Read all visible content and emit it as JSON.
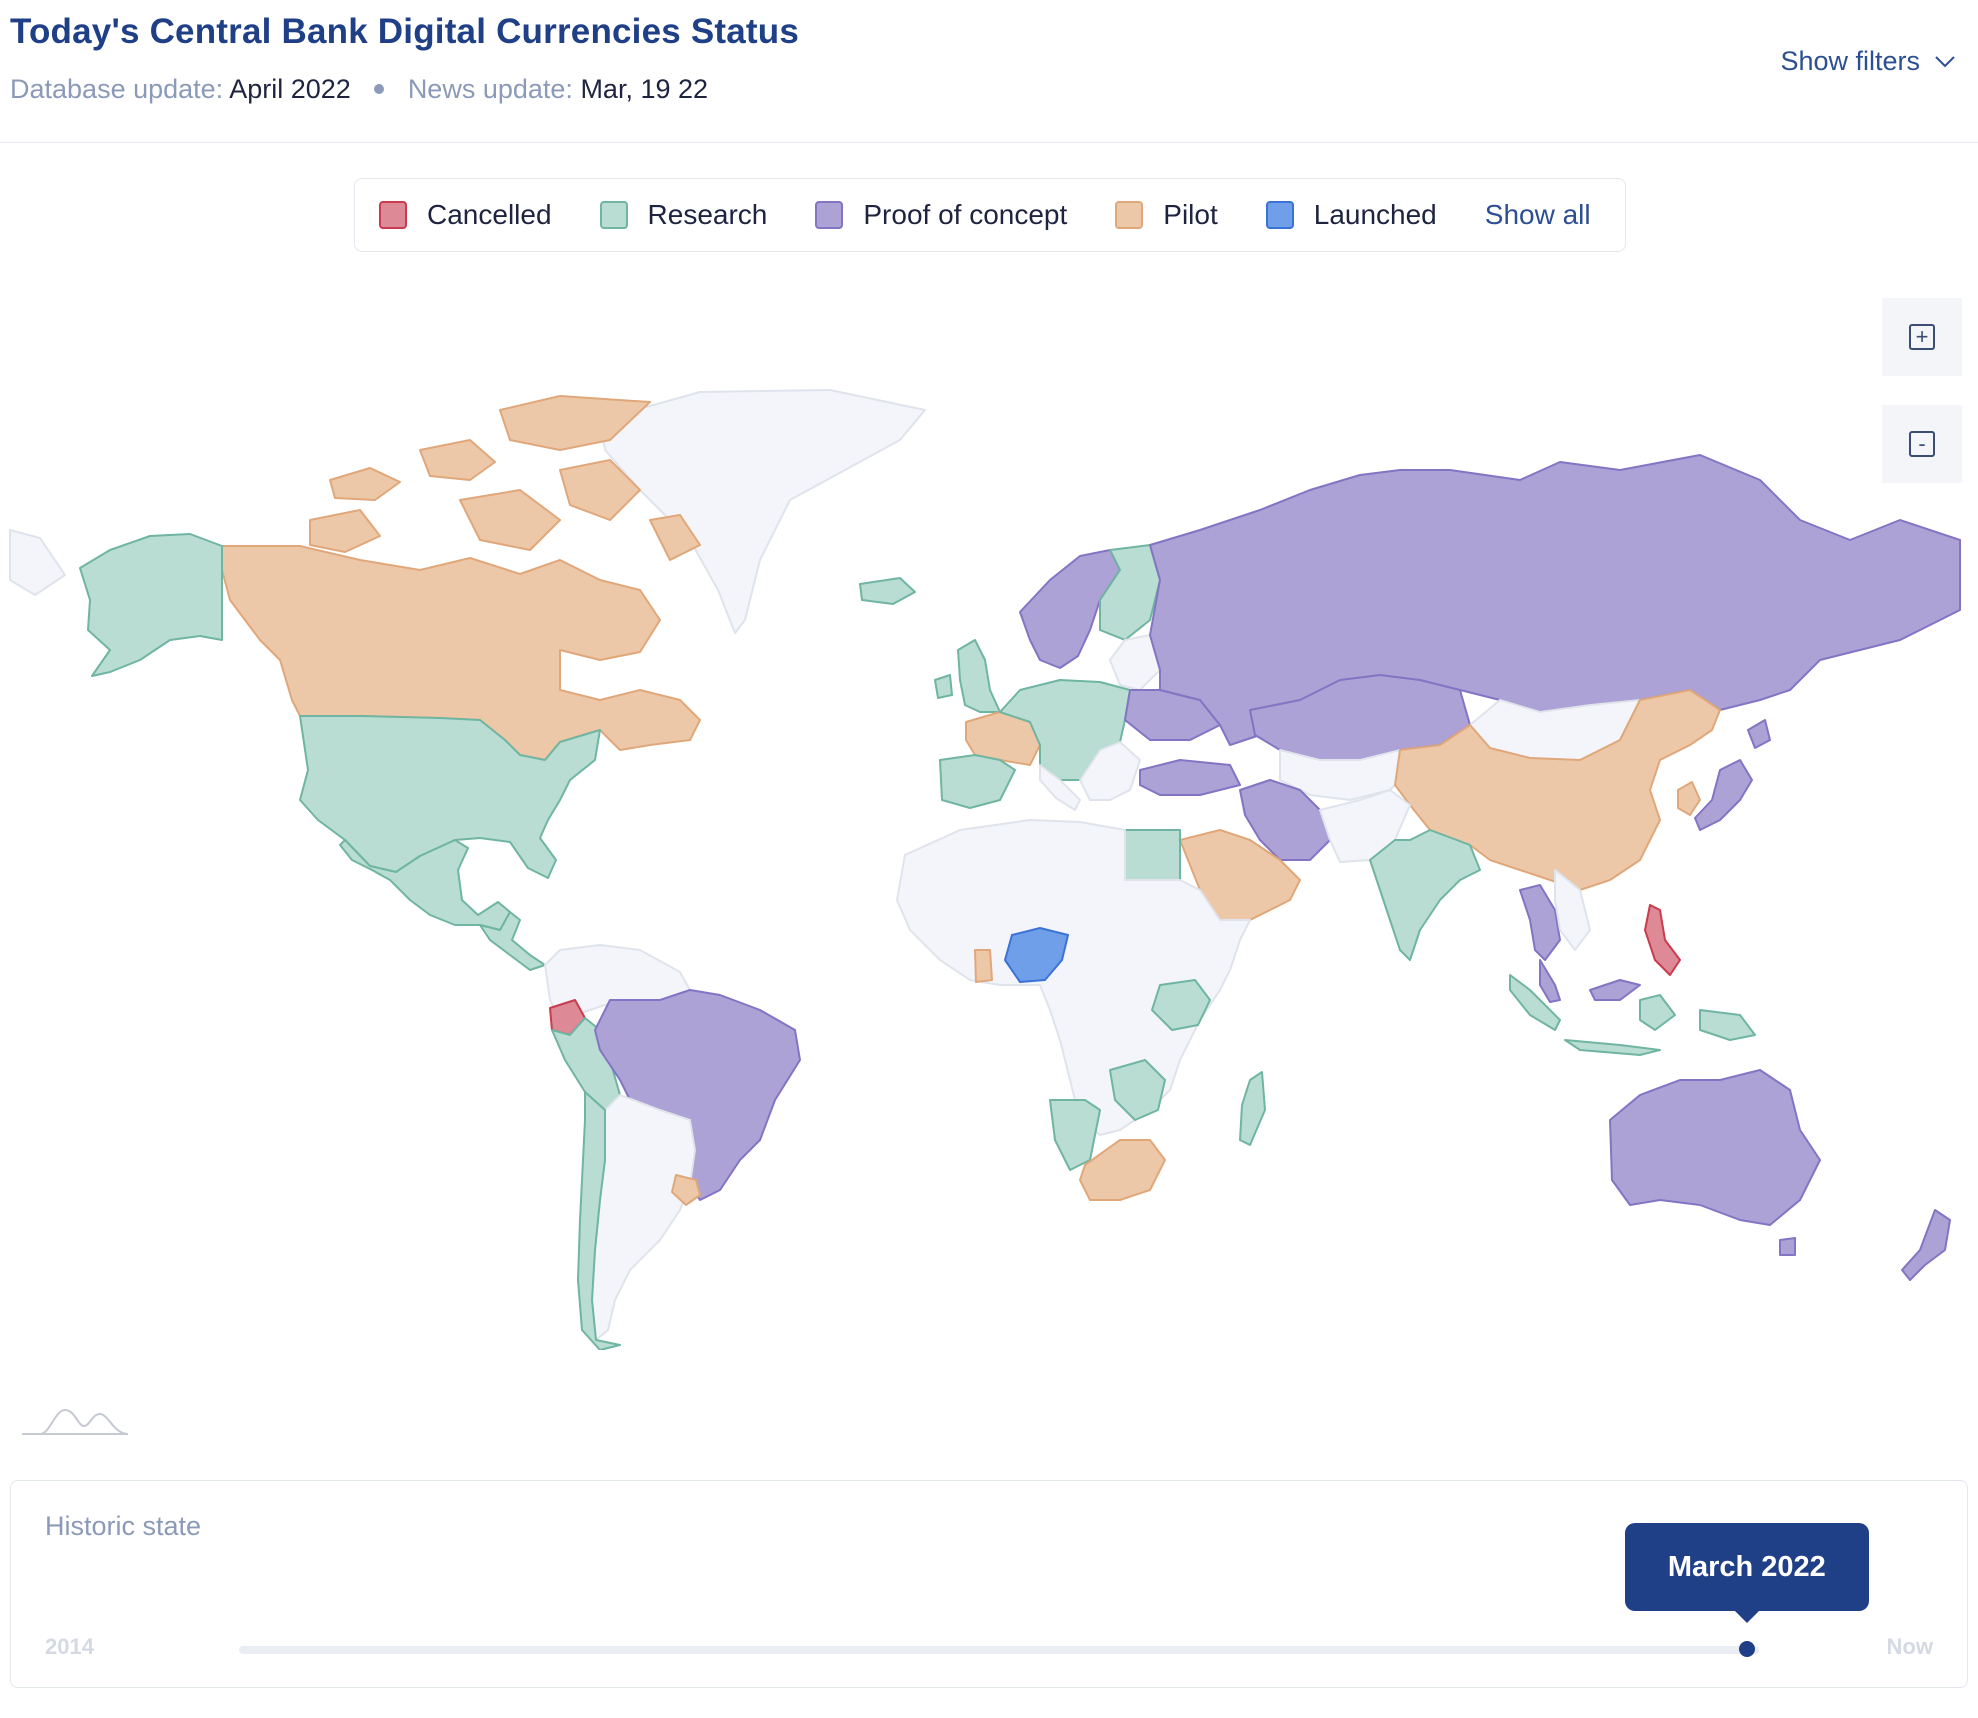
{
  "header": {
    "title": "Today's Central Bank Digital Currencies Status",
    "db_label": "Database update:",
    "db_value": "April 2022",
    "news_label": "News update:",
    "news_value": "Mar, 19 22",
    "filters_label": "Show filters"
  },
  "legend": {
    "items": [
      {
        "label": "Cancelled",
        "fill": "#de8a96",
        "stroke": "#c93b4e"
      },
      {
        "label": "Research",
        "fill": "#b9ddd3",
        "stroke": "#6fb5a1"
      },
      {
        "label": "Proof of concept",
        "fill": "#aca2d6",
        "stroke": "#8374c4"
      },
      {
        "label": "Pilot",
        "fill": "#edc8a8",
        "stroke": "#e0a77a"
      },
      {
        "label": "Launched",
        "fill": "#6f9fe8",
        "stroke": "#3c72d6"
      }
    ],
    "show_all": "Show all"
  },
  "zoom": {
    "in": "+",
    "out": "-"
  },
  "map": {
    "colors": {
      "none": "#f3f5fa",
      "border": "#dfe3eb",
      "ocean": "#ffffff"
    },
    "regions": [
      {
        "name": "Canada",
        "status": "Pilot"
      },
      {
        "name": "Canadian Arctic Islands",
        "status": "Pilot"
      },
      {
        "name": "Alaska",
        "status": "Research"
      },
      {
        "name": "United States",
        "status": "Research"
      },
      {
        "name": "Mexico",
        "status": "Research"
      },
      {
        "name": "Central America",
        "status": "Research"
      },
      {
        "name": "Greenland",
        "status": "None"
      },
      {
        "name": "Iceland",
        "status": "Research"
      },
      {
        "name": "Brazil",
        "status": "Proof of concept"
      },
      {
        "name": "Ecuador",
        "status": "Cancelled"
      },
      {
        "name": "Peru",
        "status": "Research"
      },
      {
        "name": "Chile",
        "status": "Research"
      },
      {
        "name": "Argentina",
        "status": "None"
      },
      {
        "name": "Uruguay",
        "status": "Pilot"
      },
      {
        "name": "Colombia / Venezuela",
        "status": "None"
      },
      {
        "name": "United Kingdom",
        "status": "Research"
      },
      {
        "name": "France",
        "status": "Pilot"
      },
      {
        "name": "Spain / Portugal",
        "status": "Research"
      },
      {
        "name": "Europe (central)",
        "status": "Research"
      },
      {
        "name": "Scandinavia",
        "status": "Proof of concept"
      },
      {
        "name": "Finland",
        "status": "Research"
      },
      {
        "name": "Ukraine",
        "status": "Proof of concept"
      },
      {
        "name": "Turkey",
        "status": "Proof of concept"
      },
      {
        "name": "Russia",
        "status": "Proof of concept"
      },
      {
        "name": "Kazakhstan",
        "status": "Proof of concept"
      },
      {
        "name": "Mongolia",
        "status": "None"
      },
      {
        "name": "China",
        "status": "Pilot"
      },
      {
        "name": "Korea",
        "status": "Pilot"
      },
      {
        "name": "Japan",
        "status": "Proof of concept"
      },
      {
        "name": "India",
        "status": "Research"
      },
      {
        "name": "Iran",
        "status": "Proof of concept"
      },
      {
        "name": "Saudi Arabia",
        "status": "Pilot"
      },
      {
        "name": "Egypt",
        "status": "Research"
      },
      {
        "name": "Africa (other)",
        "status": "None"
      },
      {
        "name": "Nigeria",
        "status": "Launched"
      },
      {
        "name": "Ghana",
        "status": "Pilot"
      },
      {
        "name": "Kenya",
        "status": "Research"
      },
      {
        "name": "Namibia",
        "status": "Research"
      },
      {
        "name": "Zambia / Zimbabwe",
        "status": "Research"
      },
      {
        "name": "South Africa",
        "status": "Pilot"
      },
      {
        "name": "Madagascar",
        "status": "Research"
      },
      {
        "name": "Thailand",
        "status": "Proof of concept"
      },
      {
        "name": "Malaysia",
        "status": "Proof of concept"
      },
      {
        "name": "Indonesia",
        "status": "Research"
      },
      {
        "name": "Philippines",
        "status": "Cancelled"
      },
      {
        "name": "Australia",
        "status": "Proof of concept"
      },
      {
        "name": "New Zealand",
        "status": "Proof of concept"
      }
    ]
  },
  "slider": {
    "title": "Historic state",
    "start": "2014",
    "end": "Now",
    "current": "March 2022",
    "position": 0.992
  }
}
